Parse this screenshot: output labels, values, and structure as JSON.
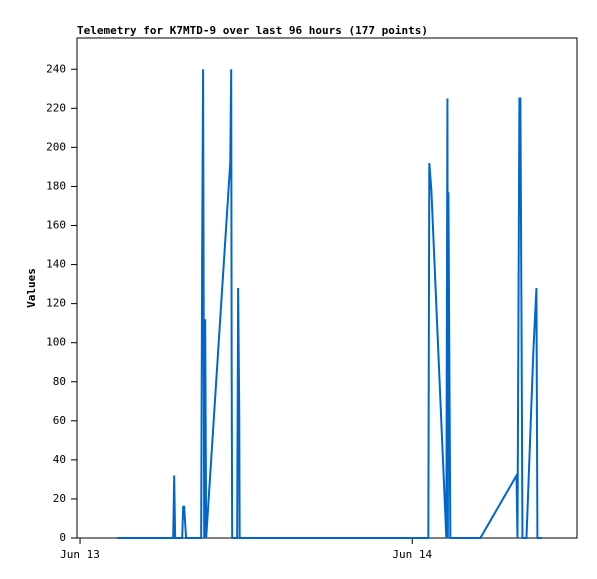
{
  "chart_data": {
    "type": "line",
    "title": "Telemetry for K7MTD-9 over last 96 hours (177 points)",
    "y_label": "Values",
    "color": "#0066cc",
    "x": [
      2.68,
      6.73,
      6.8,
      6.87,
      7.38,
      7.45,
      7.52,
      7.66,
      8.75,
      8.82,
      8.89,
      8.97,
      9.04,
      9.11,
      10.85,
      10.92,
      10.95,
      10.99,
      11.35,
      11.42,
      11.5,
      11.53,
      25.16,
      25.23,
      25.38,
      26.46,
      26.54,
      26.57,
      26.61,
      26.68,
      26.75,
      26.78,
      28.92,
      31.53,
      31.6,
      31.74,
      31.81,
      31.89,
      31.96,
      32.25,
      32.75,
      32.97,
      33.04,
      33.33
    ],
    "values": [
      0,
      0,
      32,
      0,
      0,
      16,
      16,
      0,
      0,
      145,
      240,
      0,
      112,
      0,
      192,
      240,
      96,
      0,
      0,
      128,
      64,
      0,
      0,
      192,
      178,
      0,
      225,
      0,
      177,
      88,
      0,
      0,
      0,
      32,
      0,
      225,
      225,
      112,
      0,
      0,
      96,
      128,
      0,
      0
    ],
    "xlim": [
      -0.22,
      35.9
    ],
    "xticks": [
      {
        "value": 0,
        "label": "Jun 13"
      },
      {
        "value": 24,
        "label": "Jun 14"
      }
    ],
    "ylim": [
      0,
      256
    ],
    "yticks": [
      0,
      20,
      40,
      60,
      80,
      100,
      120,
      140,
      160,
      180,
      200,
      220,
      240
    ],
    "grid": false
  }
}
